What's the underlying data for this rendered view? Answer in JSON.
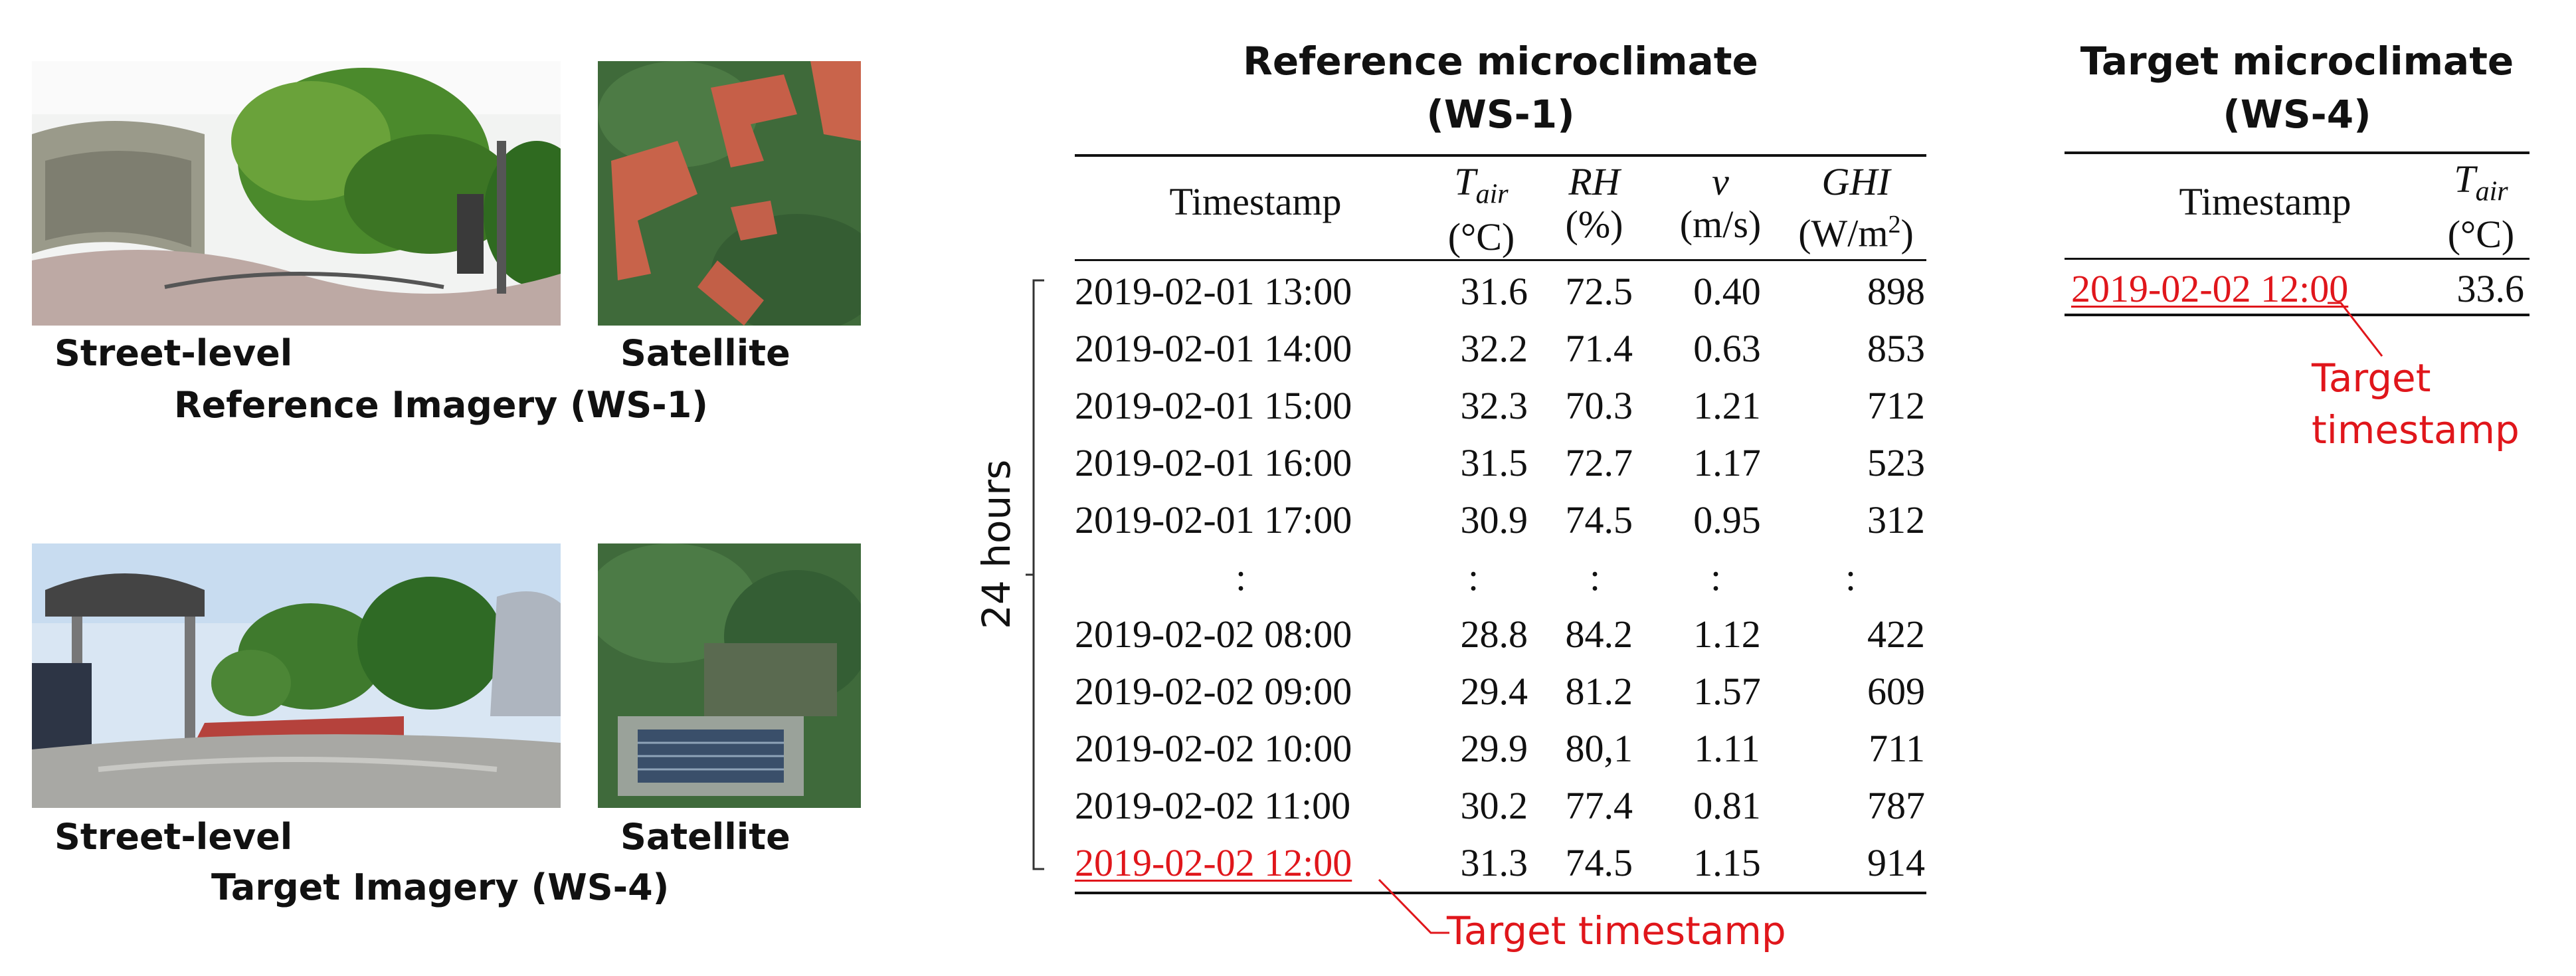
{
  "reference_imagery": {
    "caption": "Reference Imagery (WS-1)",
    "street_label": "Street-level",
    "satellite_label": "Satellite"
  },
  "target_imagery": {
    "caption": "Target Imagery (WS-4)",
    "street_label": "Street-level",
    "satellite_label": "Satellite"
  },
  "reference_table": {
    "title_line1": "Reference microclimate",
    "title_line2": "(WS-1)",
    "headers": {
      "timestamp": "Timestamp",
      "tair_symbol": "T",
      "tair_sub": "air",
      "tair_unit": "(°C)",
      "rh_symbol": "RH",
      "rh_unit": "(%)",
      "v_symbol": "v",
      "v_unit": "(m/s)",
      "ghi_symbol": "GHI",
      "ghi_unit_base": "(W/m",
      "ghi_unit_exp": "2",
      "ghi_unit_close": ")"
    },
    "rows": [
      {
        "timestamp": "2019-02-01 13:00",
        "tair": "31.6",
        "rh": "72.5",
        "v": "0.40",
        "ghi": "898"
      },
      {
        "timestamp": "2019-02-01 14:00",
        "tair": "32.2",
        "rh": "71.4",
        "v": "0.63",
        "ghi": "853"
      },
      {
        "timestamp": "2019-02-01 15:00",
        "tair": "32.3",
        "rh": "70.3",
        "v": "1.21",
        "ghi": "712"
      },
      {
        "timestamp": "2019-02-01 16:00",
        "tair": "31.5",
        "rh": "72.7",
        "v": "1.17",
        "ghi": "523"
      },
      {
        "timestamp": "2019-02-01 17:00",
        "tair": "30.9",
        "rh": "74.5",
        "v": "0.95",
        "ghi": "312"
      },
      {
        "timestamp": ":",
        "tair": ":",
        "rh": ":",
        "v": ":",
        "ghi": ":"
      },
      {
        "timestamp": "2019-02-02 08:00",
        "tair": "28.8",
        "rh": "84.2",
        "v": "1.12",
        "ghi": "422"
      },
      {
        "timestamp": "2019-02-02 09:00",
        "tair": "29.4",
        "rh": "81.2",
        "v": "1.57",
        "ghi": "609"
      },
      {
        "timestamp": "2019-02-02 10:00",
        "tair": "29.9",
        "rh": "80,1",
        "v": "1.11",
        "ghi": "711"
      },
      {
        "timestamp": "2019-02-02 11:00",
        "tair": "30.2",
        "rh": "77.4",
        "v": "0.81",
        "ghi": "787"
      },
      {
        "timestamp": "2019-02-02 12:00",
        "tair": "31.3",
        "rh": "74.5",
        "v": "1.15",
        "ghi": "914"
      }
    ],
    "span_label": "24 hours",
    "target_note": "Target timestamp"
  },
  "target_table": {
    "title_line1": "Target microclimate",
    "title_line2": "(WS-4)",
    "header_timestamp": "Timestamp",
    "header_tair_symbol": "T",
    "header_tair_sub": "air",
    "header_tair_unit": "(°C)",
    "row": {
      "timestamp": "2019-02-02 12:00",
      "tair": "33.6"
    },
    "note_line1": "Target",
    "note_line2": "timestamp"
  },
  "colors": {
    "highlight": "#e0161b",
    "text": "#111111"
  }
}
